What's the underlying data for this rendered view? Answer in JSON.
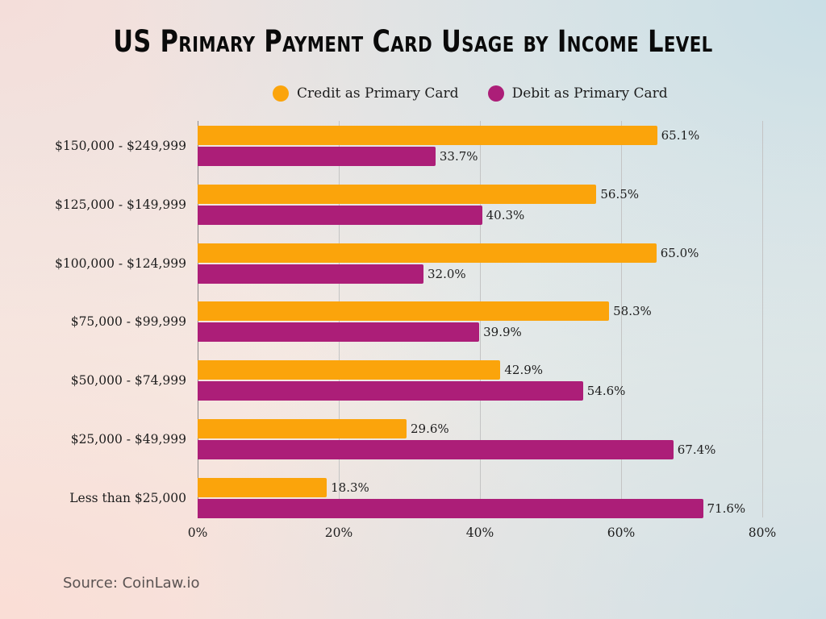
{
  "title": "US Primary Payment Card Usage by Income Level",
  "legend": [
    {
      "label": "Credit as Primary Card",
      "color": "#FBA40B"
    },
    {
      "label": "Debit as Primary Card",
      "color": "#AC1E78"
    }
  ],
  "source": "Source: CoinLaw.io",
  "x_ticks": [
    "0%",
    "20%",
    "40%",
    "60%",
    "80%"
  ],
  "chart_data": {
    "type": "bar",
    "orientation": "horizontal",
    "title": "US Primary Payment Card Usage by Income Level",
    "categories": [
      "$150,000 - $249,999",
      "$125,000 - $149,999",
      "$100,000 - $124,999",
      "$75,000 - $99,999",
      "$50,000 - $74,999",
      "$25,000 - $49,999",
      "Less than $25,000"
    ],
    "series": [
      {
        "name": "Credit as Primary Card",
        "color": "#FBA40B",
        "values": [
          65.1,
          56.5,
          65.0,
          58.3,
          42.9,
          29.6,
          18.3
        ]
      },
      {
        "name": "Debit as Primary Card",
        "color": "#AC1E78",
        "values": [
          33.7,
          40.3,
          32.0,
          39.9,
          54.6,
          67.4,
          71.6
        ]
      }
    ],
    "labels": {
      "credit": [
        "65.1%",
        "56.5%",
        "65.0%",
        "58.3%",
        "42.9%",
        "29.6%",
        "18.3%"
      ],
      "debit": [
        "33.7%",
        "40.3%",
        "32.0%",
        "39.9%",
        "54.6%",
        "67.4%",
        "71.6%"
      ]
    },
    "xlabel": "",
    "ylabel": "",
    "xlim": [
      0,
      80
    ],
    "x_ticks": [
      "0%",
      "20%",
      "40%",
      "60%",
      "80%"
    ],
    "grid": "vertical",
    "legend_position": "top",
    "source": "Source: CoinLaw.io"
  }
}
